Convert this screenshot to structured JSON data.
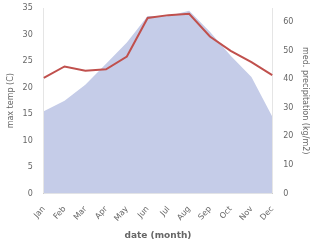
{
  "chart_data": {
    "type": "line",
    "categories": [
      "Jan",
      "Feb",
      "Mar",
      "Apr",
      "May",
      "Jun",
      "Jul",
      "Aug",
      "Sep",
      "Oct",
      "Nov",
      "Dec"
    ],
    "series": [
      {
        "type": "area",
        "color": "#c5cce8",
        "values": [
          15.5,
          17.5,
          20.5,
          24.5,
          28.5,
          33.5,
          33.5,
          34.5,
          30.5,
          26.0,
          22.0,
          14.5
        ]
      },
      {
        "type": "line",
        "color": "#c0504d",
        "axis": "y2",
        "values": [
          40.5,
          44.5,
          43.0,
          43.5,
          48.0,
          61.5,
          62.5,
          63.0,
          55.0,
          50.0,
          46.0,
          41.5
        ]
      }
    ],
    "xlabel": "date (month)",
    "ylabel": "max temp (C)",
    "y2label": "med. precipitation (kg/m2)",
    "ylim": [
      0,
      35
    ],
    "yticks": [
      0,
      5,
      10,
      15,
      20,
      25,
      30,
      35
    ],
    "y2lim": [
      0,
      65
    ],
    "y2ticks": [
      0,
      10,
      20,
      30,
      40,
      50,
      60
    ],
    "grid": false
  }
}
